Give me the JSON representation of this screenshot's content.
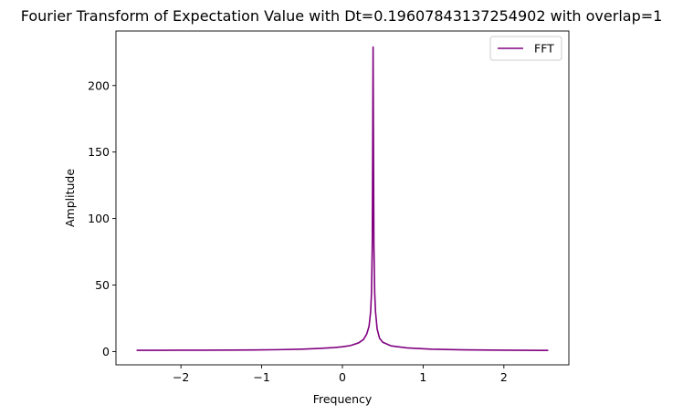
{
  "chart_data": {
    "type": "line",
    "title": "Fourier Transform of Expectation Value with Dt=0.19607843137254902 with overlap=1",
    "xlabel": "Frequency",
    "ylabel": "Amplitude",
    "xlim": [
      -2.805,
      2.805
    ],
    "ylim": [
      -10,
      241
    ],
    "xticks": [
      -2,
      -1,
      0,
      1,
      2
    ],
    "xtick_labels": [
      "−2",
      "−1",
      "0",
      "1",
      "2"
    ],
    "yticks": [
      0,
      50,
      100,
      150,
      200
    ],
    "ytick_labels": [
      "0",
      "50",
      "100",
      "150",
      "200"
    ],
    "grid": false,
    "legend": {
      "position": "top-right"
    },
    "series": [
      {
        "name": "FFT",
        "color": "#800080",
        "x": [
          -2.55,
          -2.3,
          -2.0,
          -1.7,
          -1.4,
          -1.1,
          -0.8,
          -0.5,
          -0.3,
          -0.1,
          0.0,
          0.1,
          0.2,
          0.26,
          0.3,
          0.33,
          0.35,
          0.36,
          0.37,
          0.38,
          0.39,
          0.4,
          0.41,
          0.43,
          0.46,
          0.5,
          0.6,
          0.8,
          1.1,
          1.5,
          2.0,
          2.55
        ],
        "y": [
          0.9,
          0.9,
          1.0,
          1.0,
          1.1,
          1.2,
          1.4,
          1.8,
          2.3,
          3.0,
          3.6,
          4.5,
          6.5,
          9.0,
          13.0,
          19.0,
          30.0,
          44.0,
          80.0,
          229.0,
          80.0,
          44.0,
          30.0,
          17.0,
          10.0,
          7.0,
          4.3,
          2.7,
          1.8,
          1.3,
          1.0,
          0.85
        ]
      }
    ]
  }
}
